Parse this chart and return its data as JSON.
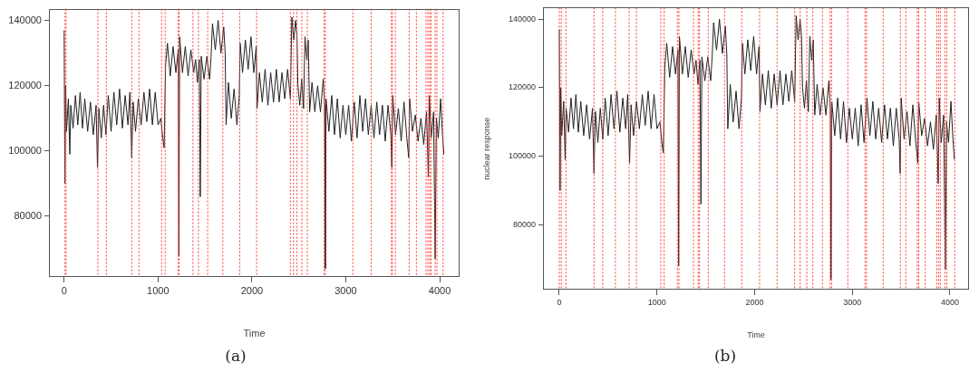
{
  "chart_data": [
    {
      "type": "line",
      "xlabel": "Time",
      "annotations": [
        "(a)"
      ],
      "xlim": [
        -162,
        4212
      ],
      "ylim": [
        61400,
        143600
      ],
      "xticks": [
        0,
        1000,
        2000,
        3000,
        4000
      ],
      "yticks": [
        80000,
        100000,
        120000,
        140000
      ],
      "marker": "none",
      "line_style": "solid",
      "legend": false,
      "series": [
        {
          "color": "#222222",
          "x": [
            0,
            8,
            15,
            25,
            45,
            60,
            70,
            95,
            120,
            145,
            170,
            195,
            220,
            250,
            280,
            310,
            340,
            355,
            370,
            395,
            420,
            445,
            470,
            500,
            530,
            560,
            590,
            620,
            650,
            680,
            700,
            720,
            735,
            760,
            790,
            820,
            850,
            880,
            910,
            940,
            970,
            1000,
            1030,
            1050,
            1065,
            1080,
            1100,
            1130,
            1160,
            1190,
            1215,
            1222,
            1230,
            1260,
            1290,
            1320,
            1350,
            1380,
            1400,
            1420,
            1440,
            1450,
            1460,
            1490,
            1520,
            1550,
            1565,
            1580,
            1610,
            1640,
            1670,
            1700,
            1715,
            1725,
            1750,
            1780,
            1810,
            1840,
            1865,
            1875,
            1900,
            1930,
            1960,
            1990,
            2020,
            2045,
            2055,
            2080,
            2110,
            2140,
            2170,
            2200,
            2230,
            2260,
            2290,
            2320,
            2350,
            2380,
            2410,
            2425,
            2445,
            2465,
            2480,
            2490,
            2510,
            2530,
            2550,
            2565,
            2585,
            2600,
            2615,
            2640,
            2670,
            2700,
            2730,
            2760,
            2775,
            2782,
            2790,
            2820,
            2850,
            2880,
            2910,
            2940,
            2970,
            3000,
            3030,
            3060,
            3090,
            3120,
            3150,
            3180,
            3210,
            3240,
            3270,
            3300,
            3330,
            3360,
            3390,
            3420,
            3450,
            3480,
            3490,
            3500,
            3530,
            3560,
            3590,
            3620,
            3650,
            3670,
            3680,
            3710,
            3740,
            3770,
            3800,
            3830,
            3860,
            3880,
            3890,
            3910,
            3935,
            3952,
            3965,
            3985,
            4010,
            4030,
            4045
          ],
          "values": [
            137000,
            90000,
            120000,
            106000,
            116000,
            99000,
            114000,
            107000,
            117000,
            108000,
            118000,
            107000,
            116000,
            106000,
            115000,
            105000,
            114000,
            95000,
            113000,
            104000,
            114000,
            105000,
            117000,
            106000,
            118000,
            108000,
            119000,
            107000,
            117000,
            108000,
            118000,
            98000,
            115000,
            106000,
            116000,
            108000,
            118000,
            109000,
            119000,
            108000,
            118000,
            108000,
            110000,
            104000,
            101000,
            126000,
            133000,
            123000,
            132000,
            124000,
            131000,
            68000,
            135000,
            124000,
            132000,
            123000,
            131000,
            124000,
            128000,
            121000,
            128000,
            86000,
            129000,
            122000,
            129000,
            122000,
            129000,
            139000,
            131000,
            140000,
            130000,
            138000,
            130000,
            108000,
            121000,
            110000,
            119000,
            108000,
            117000,
            133000,
            124000,
            134000,
            125000,
            135000,
            124000,
            132000,
            113000,
            124000,
            115000,
            125000,
            114000,
            124000,
            115000,
            125000,
            115000,
            124000,
            116000,
            125000,
            116000,
            141000,
            134000,
            140000,
            135000,
            120000,
            114000,
            122000,
            113000,
            135000,
            128000,
            134000,
            112000,
            121000,
            112000,
            120000,
            112000,
            122000,
            114000,
            64000,
            116000,
            106000,
            117000,
            105000,
            116000,
            104000,
            114000,
            105000,
            114000,
            103000,
            115000,
            104000,
            117000,
            106000,
            116000,
            105000,
            114000,
            104000,
            115000,
            105000,
            114000,
            103000,
            114000,
            105000,
            95000,
            117000,
            105000,
            113000,
            103000,
            115000,
            104000,
            98000,
            116000,
            106000,
            111000,
            103000,
            110000,
            102000,
            112000,
            92000,
            117000,
            104000,
            112000,
            67000,
            110000,
            104000,
            116000,
            105000,
            99000
          ]
        }
      ],
      "ref_lines": [
        {
          "axis": "x",
          "value": 10,
          "color": "#ff3b30",
          "line_style": "dotted"
        },
        {
          "axis": "x",
          "value": 20,
          "color": "#ff3b30",
          "line_style": "dotted"
        },
        {
          "axis": "x",
          "value": 360,
          "color": "#ff3b30",
          "line_style": "dotted"
        },
        {
          "axis": "x",
          "value": 450,
          "color": "#ff3b30",
          "line_style": "dotted"
        },
        {
          "axis": "x",
          "value": 720,
          "color": "#ff3b30",
          "line_style": "dotted"
        },
        {
          "axis": "x",
          "value": 797,
          "color": "#ff3b30",
          "line_style": "dotted"
        },
        {
          "axis": "x",
          "value": 1038,
          "color": "#ff3b30",
          "line_style": "dotted"
        },
        {
          "axis": "x",
          "value": 1076,
          "color": "#ff3b30",
          "line_style": "dotted"
        },
        {
          "axis": "x",
          "value": 1215,
          "color": "#ff3b30",
          "line_style": "dotted"
        },
        {
          "axis": "x",
          "value": 1225,
          "color": "#ff3b30",
          "line_style": "dotted"
        },
        {
          "axis": "x",
          "value": 1372,
          "color": "#ff3b30",
          "line_style": "dotted"
        },
        {
          "axis": "x",
          "value": 1430,
          "color": "#ff3b30",
          "line_style": "dotted"
        },
        {
          "axis": "x",
          "value": 1529,
          "color": "#ff3b30",
          "line_style": "dotted"
        },
        {
          "axis": "x",
          "value": 1690,
          "color": "#ff3b30",
          "line_style": "dotted"
        },
        {
          "axis": "x",
          "value": 1870,
          "color": "#ff3b30",
          "line_style": "dotted"
        },
        {
          "axis": "x",
          "value": 2050,
          "color": "#ff3b30",
          "line_style": "dotted"
        },
        {
          "axis": "x",
          "value": 2410,
          "color": "#ff3b30",
          "line_style": "dotted"
        },
        {
          "axis": "x",
          "value": 2442,
          "color": "#ff3b30",
          "line_style": "dotted"
        },
        {
          "axis": "x",
          "value": 2480,
          "color": "#ff3b30",
          "line_style": "dotted"
        },
        {
          "axis": "x",
          "value": 2532,
          "color": "#ff3b30",
          "line_style": "dotted"
        },
        {
          "axis": "x",
          "value": 2590,
          "color": "#ff3b30",
          "line_style": "dotted"
        },
        {
          "axis": "x",
          "value": 2769,
          "color": "#ff3b30",
          "line_style": "dotted"
        },
        {
          "axis": "x",
          "value": 2782,
          "color": "#ff3b30",
          "line_style": "dotted"
        },
        {
          "axis": "x",
          "value": 3075,
          "color": "#ff3b30",
          "line_style": "dotted"
        },
        {
          "axis": "x",
          "value": 3270,
          "color": "#ff3b30",
          "line_style": "dotted"
        },
        {
          "axis": "x",
          "value": 3486,
          "color": "#ff3b30",
          "line_style": "dotted"
        },
        {
          "axis": "x",
          "value": 3496,
          "color": "#ff3b30",
          "line_style": "dotted"
        },
        {
          "axis": "x",
          "value": 3528,
          "color": "#ff3b30",
          "line_style": "dotted"
        },
        {
          "axis": "x",
          "value": 3675,
          "color": "#ff3b30",
          "line_style": "dotted"
        },
        {
          "axis": "x",
          "value": 3752,
          "color": "#ff3b30",
          "line_style": "dotted"
        },
        {
          "axis": "x",
          "value": 3855,
          "color": "#ff3b30",
          "line_style": "dotted"
        },
        {
          "axis": "x",
          "value": 3875,
          "color": "#ff3b30",
          "line_style": "dotted"
        },
        {
          "axis": "x",
          "value": 3894,
          "color": "#ff3b30",
          "line_style": "dotted"
        },
        {
          "axis": "x",
          "value": 3907,
          "color": "#ff3b30",
          "line_style": "dotted"
        },
        {
          "axis": "x",
          "value": 3952,
          "color": "#ff3b30",
          "line_style": "dotted"
        },
        {
          "axis": "x",
          "value": 3971,
          "color": "#ff3b30",
          "line_style": "dotted"
        },
        {
          "axis": "x",
          "value": 4036,
          "color": "#ff3b30",
          "line_style": "dotted"
        }
      ]
    },
    {
      "type": "line",
      "xlabel": "Time",
      "ylabel": "nuclear response",
      "annotations": [
        "(b)"
      ],
      "xlim": [
        -167,
        4195
      ],
      "ylim": [
        61000,
        143400
      ],
      "xticks": [
        0,
        1000,
        2000,
        3000,
        4000
      ],
      "yticks": [
        80000,
        100000,
        120000,
        140000
      ],
      "marker": "none",
      "line_style": "solid",
      "legend": false,
      "series": [
        {
          "color": "#222222",
          "x": [
            0,
            8,
            15,
            25,
            45,
            60,
            70,
            95,
            120,
            145,
            170,
            195,
            220,
            250,
            280,
            310,
            340,
            355,
            370,
            395,
            420,
            445,
            470,
            500,
            530,
            560,
            590,
            620,
            650,
            680,
            700,
            720,
            735,
            760,
            790,
            820,
            850,
            880,
            910,
            940,
            970,
            1000,
            1030,
            1050,
            1065,
            1080,
            1100,
            1130,
            1160,
            1190,
            1215,
            1222,
            1230,
            1260,
            1290,
            1320,
            1350,
            1380,
            1400,
            1420,
            1440,
            1450,
            1460,
            1490,
            1520,
            1550,
            1565,
            1580,
            1610,
            1640,
            1670,
            1700,
            1715,
            1725,
            1750,
            1780,
            1810,
            1840,
            1865,
            1875,
            1900,
            1930,
            1960,
            1990,
            2020,
            2045,
            2055,
            2080,
            2110,
            2140,
            2170,
            2200,
            2230,
            2260,
            2290,
            2320,
            2350,
            2380,
            2410,
            2425,
            2445,
            2465,
            2480,
            2490,
            2510,
            2530,
            2550,
            2565,
            2585,
            2600,
            2615,
            2640,
            2670,
            2700,
            2730,
            2760,
            2775,
            2782,
            2790,
            2820,
            2850,
            2880,
            2910,
            2940,
            2970,
            3000,
            3030,
            3060,
            3090,
            3120,
            3150,
            3180,
            3210,
            3240,
            3270,
            3300,
            3330,
            3360,
            3390,
            3420,
            3450,
            3480,
            3490,
            3500,
            3530,
            3560,
            3590,
            3620,
            3650,
            3670,
            3680,
            3710,
            3740,
            3770,
            3800,
            3830,
            3860,
            3880,
            3890,
            3910,
            3935,
            3952,
            3965,
            3985,
            4010,
            4030,
            4045
          ],
          "values": [
            137000,
            90000,
            120000,
            106000,
            116000,
            99000,
            114000,
            107000,
            117000,
            108000,
            118000,
            107000,
            116000,
            106000,
            115000,
            105000,
            114000,
            95000,
            113000,
            104000,
            114000,
            105000,
            117000,
            106000,
            118000,
            108000,
            119000,
            107000,
            117000,
            108000,
            118000,
            98000,
            115000,
            106000,
            116000,
            108000,
            118000,
            109000,
            119000,
            108000,
            118000,
            108000,
            110000,
            104000,
            101000,
            126000,
            133000,
            123000,
            132000,
            124000,
            131000,
            68000,
            135000,
            124000,
            132000,
            123000,
            131000,
            124000,
            128000,
            121000,
            128000,
            86000,
            129000,
            122000,
            129000,
            122000,
            129000,
            139000,
            131000,
            140000,
            130000,
            138000,
            130000,
            108000,
            121000,
            110000,
            119000,
            108000,
            117000,
            133000,
            124000,
            134000,
            125000,
            135000,
            124000,
            132000,
            113000,
            124000,
            115000,
            125000,
            114000,
            124000,
            115000,
            125000,
            115000,
            124000,
            116000,
            125000,
            116000,
            141000,
            134000,
            140000,
            135000,
            120000,
            114000,
            122000,
            113000,
            135000,
            128000,
            134000,
            112000,
            121000,
            112000,
            120000,
            112000,
            122000,
            114000,
            64000,
            116000,
            106000,
            117000,
            105000,
            116000,
            104000,
            114000,
            105000,
            114000,
            103000,
            115000,
            104000,
            117000,
            106000,
            116000,
            105000,
            114000,
            104000,
            115000,
            105000,
            114000,
            103000,
            114000,
            105000,
            95000,
            117000,
            105000,
            113000,
            103000,
            115000,
            104000,
            98000,
            116000,
            106000,
            111000,
            103000,
            110000,
            102000,
            112000,
            92000,
            117000,
            104000,
            112000,
            67000,
            110000,
            104000,
            116000,
            105000,
            99000
          ]
        }
      ],
      "ref_lines": [
        {
          "axis": "x",
          "value": 0,
          "color": "#ff3b30",
          "line_style": "dotted"
        },
        {
          "axis": "x",
          "value": 20,
          "color": "#ff3b30",
          "line_style": "dotted"
        },
        {
          "axis": "x",
          "value": 68,
          "color": "#ff3b30",
          "line_style": "dotted"
        },
        {
          "axis": "x",
          "value": 356,
          "color": "#ff3b30",
          "line_style": "dotted"
        },
        {
          "axis": "x",
          "value": 445,
          "color": "#ff3b30",
          "line_style": "dotted"
        },
        {
          "axis": "x",
          "value": 575,
          "color": "#ff3b30",
          "line_style": "dotted"
        },
        {
          "axis": "x",
          "value": 715,
          "color": "#ff3b30",
          "line_style": "dotted"
        },
        {
          "axis": "x",
          "value": 789,
          "color": "#ff3b30",
          "line_style": "dotted"
        },
        {
          "axis": "x",
          "value": 1039,
          "color": "#ff3b30",
          "line_style": "dotted"
        },
        {
          "axis": "x",
          "value": 1074,
          "color": "#ff3b30",
          "line_style": "dotted"
        },
        {
          "axis": "x",
          "value": 1209,
          "color": "#ff3b30",
          "line_style": "dotted"
        },
        {
          "axis": "x",
          "value": 1225,
          "color": "#ff3b30",
          "line_style": "dotted"
        },
        {
          "axis": "x",
          "value": 1374,
          "color": "#ff3b30",
          "line_style": "dotted"
        },
        {
          "axis": "x",
          "value": 1422,
          "color": "#ff3b30",
          "line_style": "dotted"
        },
        {
          "axis": "x",
          "value": 1436,
          "color": "#ff3b30",
          "line_style": "dotted"
        },
        {
          "axis": "x",
          "value": 1525,
          "color": "#ff3b30",
          "line_style": "dotted"
        },
        {
          "axis": "x",
          "value": 1692,
          "color": "#ff3b30",
          "line_style": "dotted"
        },
        {
          "axis": "x",
          "value": 1868,
          "color": "#ff3b30",
          "line_style": "dotted"
        },
        {
          "axis": "x",
          "value": 2051,
          "color": "#ff3b30",
          "line_style": "dotted"
        },
        {
          "axis": "x",
          "value": 2230,
          "color": "#ff3b30",
          "line_style": "dotted"
        },
        {
          "axis": "x",
          "value": 2410,
          "color": "#ff3b30",
          "line_style": "dotted"
        },
        {
          "axis": "x",
          "value": 2466,
          "color": "#ff3b30",
          "line_style": "dotted"
        },
        {
          "axis": "x",
          "value": 2534,
          "color": "#ff3b30",
          "line_style": "dotted"
        },
        {
          "axis": "x",
          "value": 2596,
          "color": "#ff3b30",
          "line_style": "dotted"
        },
        {
          "axis": "x",
          "value": 2694,
          "color": "#ff3b30",
          "line_style": "dotted"
        },
        {
          "axis": "x",
          "value": 2773,
          "color": "#ff3b30",
          "line_style": "dotted"
        },
        {
          "axis": "x",
          "value": 2788,
          "color": "#ff3b30",
          "line_style": "dotted"
        },
        {
          "axis": "x",
          "value": 2954,
          "color": "#ff3b30",
          "line_style": "dotted"
        },
        {
          "axis": "x",
          "value": 3131,
          "color": "#ff3b30",
          "line_style": "dotted"
        },
        {
          "axis": "x",
          "value": 3146,
          "color": "#ff3b30",
          "line_style": "dotted"
        },
        {
          "axis": "x",
          "value": 3316,
          "color": "#ff3b30",
          "line_style": "dotted"
        },
        {
          "axis": "x",
          "value": 3492,
          "color": "#ff3b30",
          "line_style": "dotted"
        },
        {
          "axis": "x",
          "value": 3548,
          "color": "#ff3b30",
          "line_style": "dotted"
        },
        {
          "axis": "x",
          "value": 3665,
          "color": "#ff3b30",
          "line_style": "dotted"
        },
        {
          "axis": "x",
          "value": 3680,
          "color": "#ff3b30",
          "line_style": "dotted"
        },
        {
          "axis": "x",
          "value": 3747,
          "color": "#ff3b30",
          "line_style": "dotted"
        },
        {
          "axis": "x",
          "value": 3864,
          "color": "#ff3b30",
          "line_style": "dotted"
        },
        {
          "axis": "x",
          "value": 3883,
          "color": "#ff3b30",
          "line_style": "dotted"
        },
        {
          "axis": "x",
          "value": 3901,
          "color": "#ff3b30",
          "line_style": "dotted"
        },
        {
          "axis": "x",
          "value": 3948,
          "color": "#ff3b30",
          "line_style": "dotted"
        },
        {
          "axis": "x",
          "value": 3967,
          "color": "#ff3b30",
          "line_style": "dotted"
        },
        {
          "axis": "x",
          "value": 4049,
          "color": "#ff3b30",
          "line_style": "dotted"
        }
      ]
    }
  ]
}
